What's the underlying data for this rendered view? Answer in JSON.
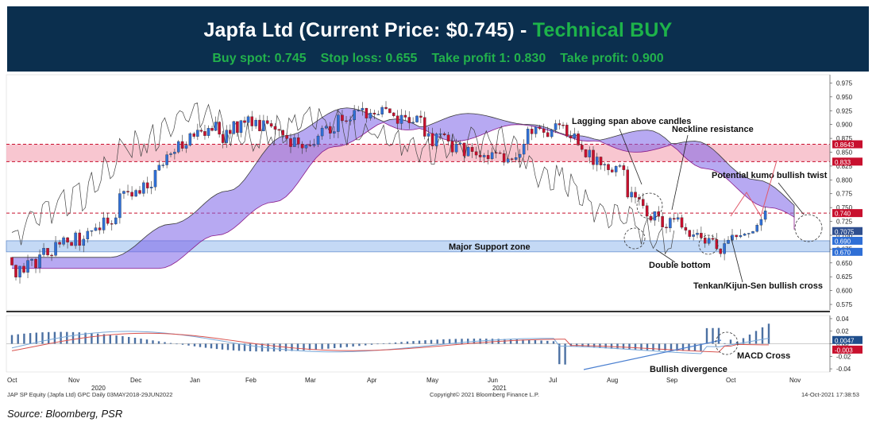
{
  "header": {
    "title_main": "Japfa Ltd (Current Price: $0.745) -",
    "title_signal": "Technical BUY",
    "buy_spot": "Buy spot: 0.745",
    "stop_loss": "Stop loss: 0.655",
    "take_profit_1": "Take profit 1: 0.830",
    "take_profit_2": "Take profit: 0.900"
  },
  "footer": {
    "left": "JAP SP Equity (Japfa Ltd) GPC  Daily 03MAY2018-29JUN2022",
    "center": "Copyright© 2021 Bloomberg Finance L.P.",
    "right": "14-Oct-2021 17:38:53"
  },
  "source": "Source: Bloomberg, PSR",
  "colors": {
    "banner_bg": "#0b2f4e",
    "signal_green": "#22b14c",
    "bull_candle": "#2f6fd6",
    "bear_candle": "#c8102e",
    "kumo_bull": "#7b63e8",
    "kumo_bear": "#a6a6a6",
    "resistance_zone": "#f6b3c0",
    "support_zone": "#c4d9f5",
    "annotation_line": "#e05a6a"
  },
  "chart_data": [
    {
      "type": "candlestick",
      "title": "",
      "xlabel": "",
      "ylabel": "",
      "x_ticks": [
        "Oct",
        "Nov",
        "Dec",
        "Jan",
        "Feb",
        "Mar",
        "Apr",
        "May",
        "Jun",
        "Jul",
        "Aug",
        "Sep",
        "Oct",
        "Nov"
      ],
      "x_year_labels": [
        "2020",
        "2021"
      ],
      "y_ticks": [
        0.575,
        0.6,
        0.625,
        0.65,
        0.675,
        0.7,
        0.725,
        0.75,
        0.775,
        0.8,
        0.825,
        0.85,
        0.875,
        0.9,
        0.925,
        0.95,
        0.975
      ],
      "ylim": [
        0.565,
        0.99
      ],
      "price_markers": [
        {
          "label": "0.8643",
          "value": 0.8643,
          "color": "#c8102e"
        },
        {
          "label": "0.833",
          "value": 0.833,
          "color": "#c8102e"
        },
        {
          "label": "0.740",
          "value": 0.74,
          "color": "#c8102e"
        },
        {
          "label": "0.7075",
          "value": 0.7075,
          "color": "#2f4f8f"
        },
        {
          "label": "0.690",
          "value": 0.69,
          "color": "#2f6fd6"
        },
        {
          "label": "0.670",
          "value": 0.67,
          "color": "#2f6fd6"
        }
      ],
      "resistance_zone": [
        0.833,
        0.8643
      ],
      "neckline": 0.74,
      "support_zone": [
        0.67,
        0.69
      ],
      "support_label": "Major Support zone",
      "close_series": {
        "months": [
          0.66,
          0.72,
          0.78,
          0.88,
          0.93,
          0.89,
          0.92,
          0.9,
          0.87,
          0.89,
          0.82,
          0.75,
          0.7,
          0.69,
          0.745
        ],
        "x_index": [
          0,
          1,
          2,
          3,
          4,
          5,
          6,
          7,
          8,
          9,
          10,
          11,
          12,
          12.3,
          12.6
        ]
      },
      "annotations": [
        {
          "text": "Lagging span above candles"
        },
        {
          "text": "Neckline resistance"
        },
        {
          "text": "Potential kumo bullish twist"
        },
        {
          "text": "Double bottom"
        },
        {
          "text": "Tenkan/Kijun-Sen bullish cross"
        }
      ]
    },
    {
      "type": "line",
      "title": "",
      "y_ticks": [
        0.04,
        0.02,
        0.0,
        -0.02,
        -0.04
      ],
      "ylim": [
        -0.045,
        0.045
      ],
      "markers": [
        {
          "label": "0.0047",
          "value": 0.0047,
          "color": "#1f4e8c"
        },
        {
          "label": "-0.003",
          "value": -0.003,
          "color": "#c8102e"
        }
      ],
      "annotations": [
        {
          "text": "MACD Cross"
        },
        {
          "text": "Bullish divergence"
        }
      ]
    }
  ]
}
